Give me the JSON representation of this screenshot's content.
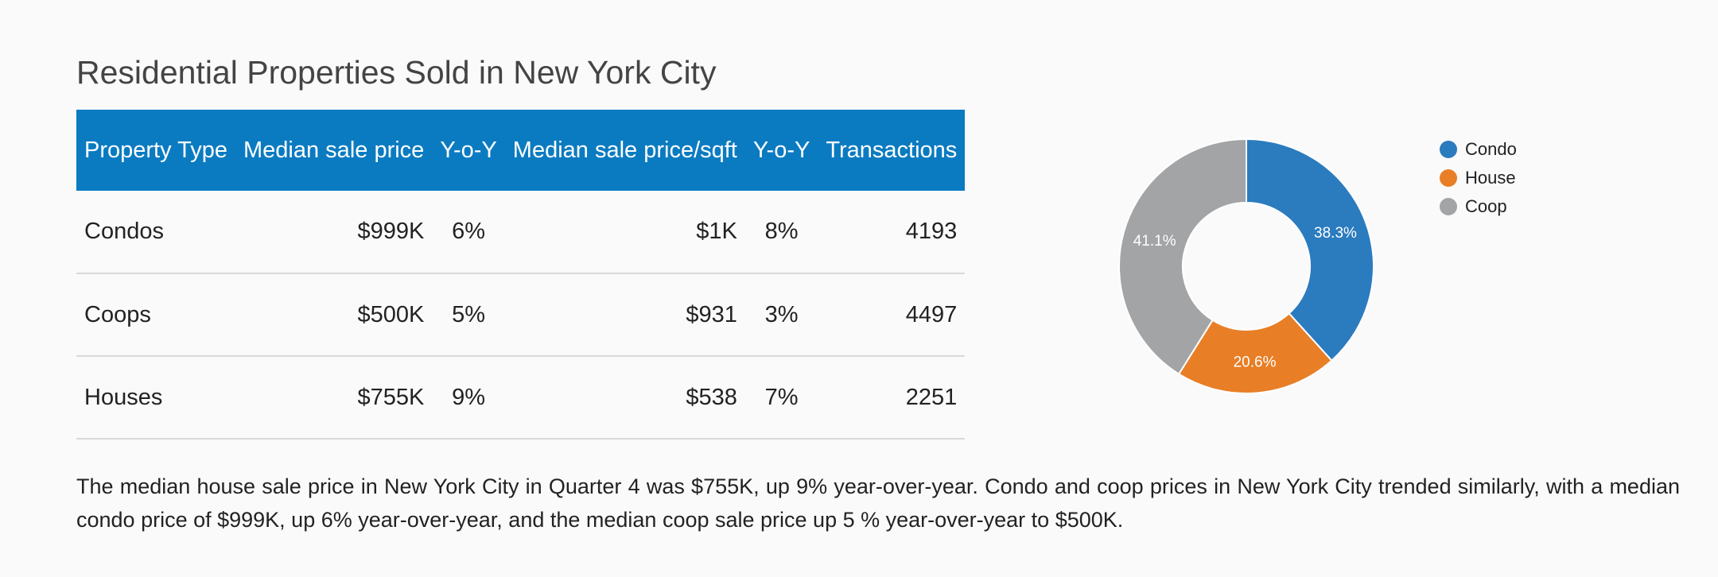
{
  "page": {
    "title": "Residential Properties Sold in New York City",
    "summary": "The median house sale price in New York City in Quarter 4 was $755K, up 9% year-over-year. Condo and coop prices in New York City trended similarly, with a median condo price of $999K, up 6% year-over-year, and the median coop sale price up 5 % year-over-year to $500K."
  },
  "table": {
    "headers": {
      "property_type": "Property Type",
      "median_sale_price": "Median sale price",
      "yoy_price": "Y-o-Y",
      "median_price_sqft": "Median sale price/sqft",
      "yoy_sqft": "Y-o-Y",
      "transactions": "Transactions"
    },
    "rows": [
      {
        "property_type": "Condos",
        "median_sale_price": "$999K",
        "yoy_price": "6%",
        "median_price_sqft": "$1K",
        "yoy_sqft": "8%",
        "transactions": "4193"
      },
      {
        "property_type": "Coops",
        "median_sale_price": "$500K",
        "yoy_price": "5%",
        "median_price_sqft": "$931",
        "yoy_sqft": "3%",
        "transactions": "4497"
      },
      {
        "property_type": "Houses",
        "median_sale_price": "$755K",
        "yoy_price": "9%",
        "median_price_sqft": "$538",
        "yoy_sqft": "7%",
        "transactions": "2251"
      }
    ]
  },
  "colors": {
    "header_bg": "#0b7bc1",
    "condo": "#2b7bbf",
    "house": "#e87e26",
    "coop": "#a3a4a6"
  },
  "chart_data": {
    "type": "pie",
    "donut": true,
    "start_angle_deg": 0,
    "direction": "clockwise",
    "legend_position": "right",
    "slices": [
      {
        "name": "Condo",
        "value": 38.3,
        "label": "38.3%",
        "color": "#2b7bbf"
      },
      {
        "name": "House",
        "value": 20.6,
        "label": "20.6%",
        "color": "#e87e26"
      },
      {
        "name": "Coop",
        "value": 41.1,
        "label": "41.1%",
        "color": "#a3a4a6"
      }
    ]
  }
}
